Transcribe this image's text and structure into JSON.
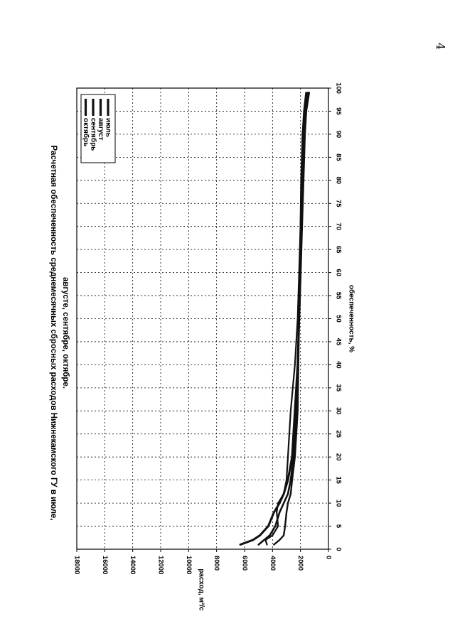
{
  "page": {
    "number": "4"
  },
  "chart_data": {
    "type": "line",
    "title_lines": [
      "Расчетная обеспеченность среднемесячных сбросных расходов Нижнекамского ГУ в июле,",
      "августе, сентябре, октябре."
    ],
    "xlabel": "обеспеченность, %",
    "ylabel": "расход, м³/с",
    "xlim": [
      0,
      100
    ],
    "ylim": [
      0,
      18000
    ],
    "x_ticks": [
      0,
      5,
      10,
      15,
      20,
      25,
      30,
      35,
      40,
      45,
      50,
      55,
      60,
      65,
      70,
      75,
      80,
      85,
      90,
      95,
      100
    ],
    "y_ticks": [
      0,
      2000,
      4000,
      6000,
      8000,
      10000,
      12000,
      14000,
      16000,
      18000
    ],
    "y_tick_labels": [
      "0",
      "2000",
      "4000",
      "6000",
      "8000",
      "10000",
      "12000",
      "14000",
      "16000",
      "18000"
    ],
    "grid": true,
    "legend_position": "top-right",
    "series": [
      {
        "name": "июль",
        "x": [
          1,
          2,
          3,
          5,
          8,
          10,
          12,
          15,
          20,
          25,
          30,
          40,
          50,
          60,
          70,
          80,
          90,
          95,
          99
        ],
        "y": [
          6300,
          5400,
          4900,
          4300,
          3900,
          3500,
          3200,
          2900,
          2600,
          2500,
          2400,
          2200,
          2100,
          2000,
          1900,
          1800,
          1700,
          1600,
          1400
        ]
      },
      {
        "name": "август",
        "x": [
          1,
          2,
          3,
          5,
          8,
          10,
          12,
          15,
          20,
          25,
          30,
          40,
          50,
          60,
          70,
          80,
          90,
          95,
          99
        ],
        "y": [
          5000,
          4600,
          4200,
          3800,
          3500,
          3200,
          2900,
          2700,
          2500,
          2400,
          2300,
          2200,
          2100,
          2000,
          1950,
          1900,
          1800,
          1700,
          1500
        ]
      },
      {
        "name": "сентябрь",
        "x": [
          1,
          2,
          3,
          5,
          8,
          10,
          12,
          15,
          20,
          25,
          30,
          40,
          50,
          60,
          70,
          80,
          90,
          95,
          99
        ],
        "y": [
          3900,
          3500,
          3200,
          3100,
          3000,
          2900,
          2700,
          2600,
          2400,
          2300,
          2200,
          2150,
          2100,
          2050,
          2000,
          1950,
          1850,
          1750,
          1600
        ]
      },
      {
        "name": "октябрь",
        "x": [
          1,
          2,
          3,
          5,
          8,
          10,
          12,
          15,
          20,
          25,
          30,
          40,
          50,
          60,
          70,
          80,
          90,
          95,
          99
        ],
        "y": [
          4400,
          4500,
          4000,
          3600,
          3700,
          3600,
          3200,
          3000,
          2900,
          2800,
          2700,
          2400,
          2200,
          2100,
          2000,
          1900,
          1800,
          1700,
          1500
        ]
      }
    ]
  }
}
